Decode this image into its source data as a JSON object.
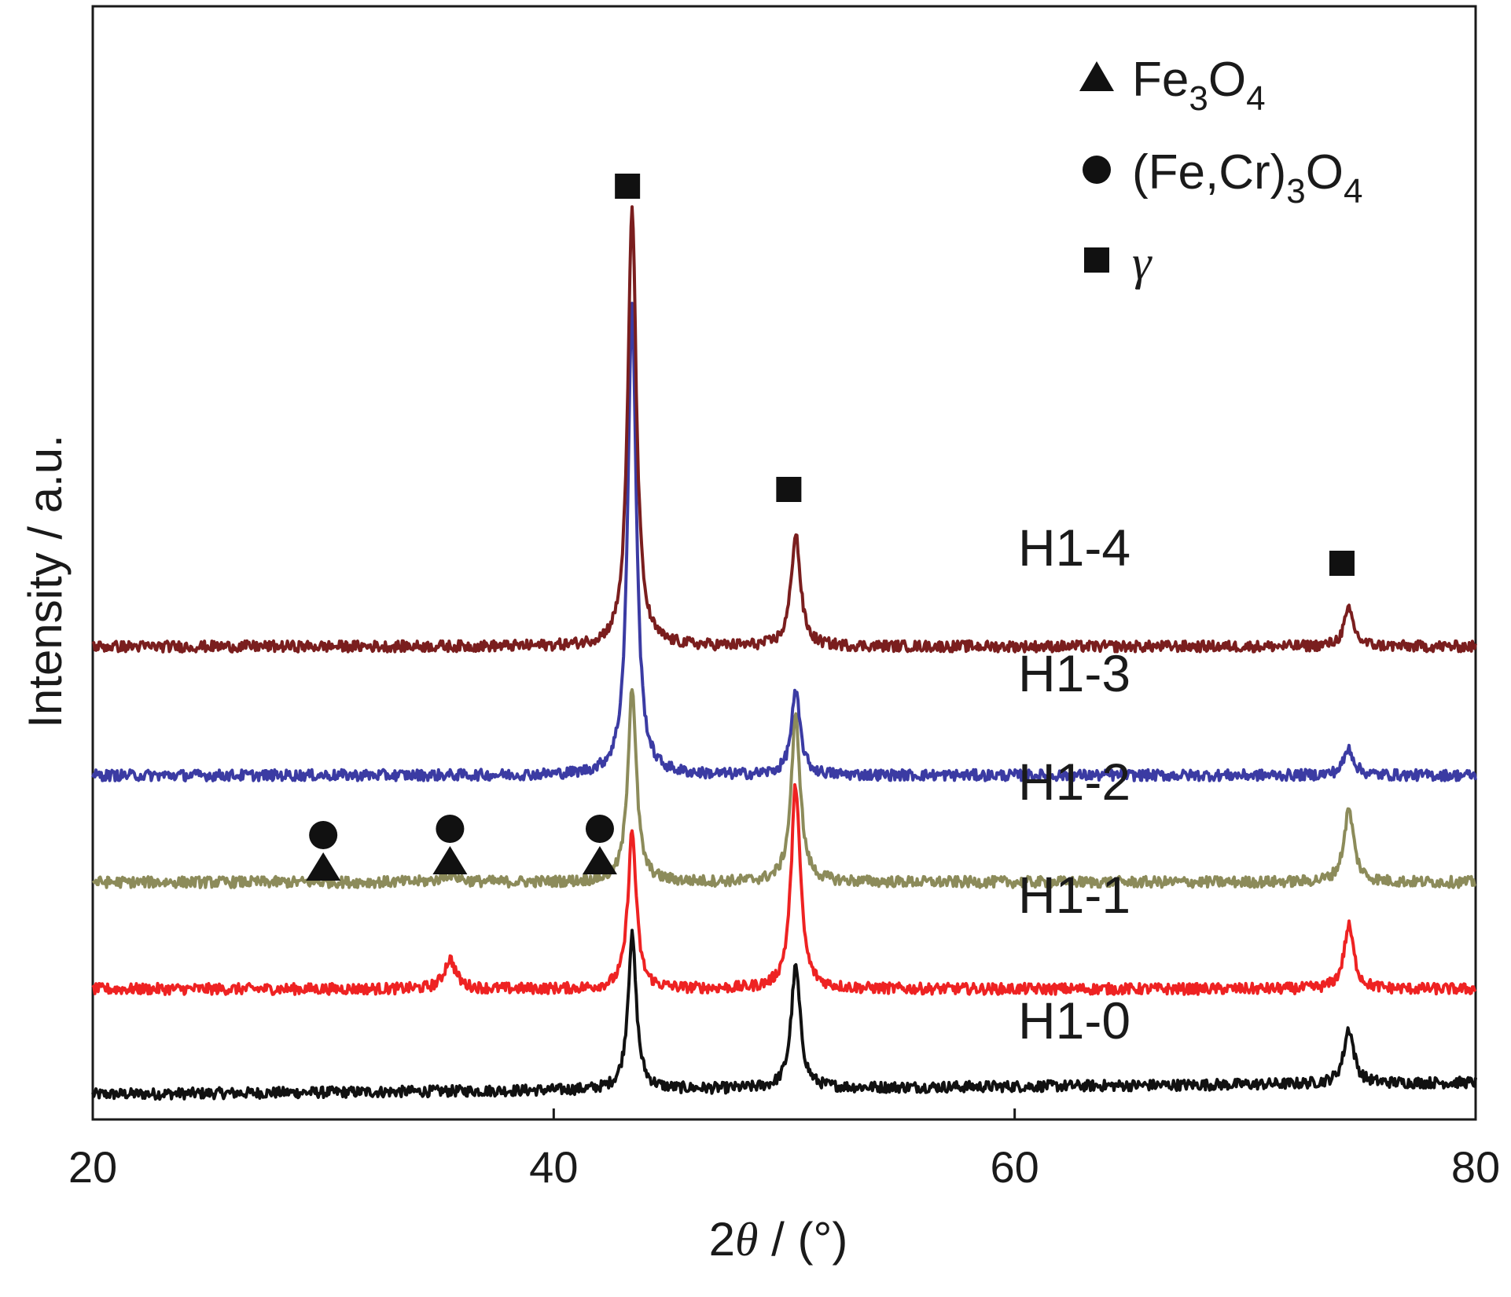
{
  "chart_data": {
    "type": "line",
    "title": "",
    "xlabel_prefix": "2",
    "xlabel_symbol": "θ",
    "xlabel_suffix": " / (°)",
    "ylabel": "Intensity / a.u.",
    "xlim": [
      20,
      80
    ],
    "xticks": [
      20,
      40,
      60,
      80
    ],
    "xtick_labels": [
      "20",
      "40",
      "60",
      "80"
    ],
    "y_units": "a.u. (offset, stacked)",
    "series": [
      {
        "name": "H1-0",
        "color": "#111111",
        "baseline": 0,
        "baseline_slope": 0.75,
        "peaks": [
          {
            "x": 43.4,
            "height": 9.8,
            "width": 0.22
          },
          {
            "x": 50.5,
            "height": 7.7,
            "width": 0.24
          },
          {
            "x": 74.5,
            "height": 3.5,
            "width": 0.26
          }
        ]
      },
      {
        "name": "H1-1",
        "color": "#ee2222",
        "baseline": 6.7,
        "baseline_slope": 0,
        "peaks": [
          {
            "x": 35.5,
            "height": 1.9,
            "width": 0.3
          },
          {
            "x": 43.4,
            "height": 10.0,
            "width": 0.22
          },
          {
            "x": 50.5,
            "height": 13.0,
            "width": 0.24
          },
          {
            "x": 74.5,
            "height": 4.0,
            "width": 0.26
          }
        ]
      },
      {
        "name": "H1-2",
        "color": "#8c8b5a",
        "baseline": 13.5,
        "baseline_slope": 0,
        "peaks": [
          {
            "x": 35.5,
            "height": 0.5,
            "width": 0.4
          },
          {
            "x": 43.4,
            "height": 12.5,
            "width": 0.22
          },
          {
            "x": 50.5,
            "height": 10.5,
            "width": 0.24
          },
          {
            "x": 74.5,
            "height": 4.6,
            "width": 0.26
          }
        ]
      },
      {
        "name": "H1-3",
        "color": "#3b3ba3",
        "baseline": 20.3,
        "baseline_slope": 0,
        "peaks": [
          {
            "x": 43.4,
            "height": 30.0,
            "width": 0.22
          },
          {
            "x": 50.5,
            "height": 5.2,
            "width": 0.24
          },
          {
            "x": 74.5,
            "height": 1.7,
            "width": 0.26
          }
        ]
      },
      {
        "name": "H1-4",
        "color": "#7a1e1e",
        "baseline": 28.5,
        "baseline_slope": 0,
        "peaks": [
          {
            "x": 43.4,
            "height": 28.0,
            "width": 0.22
          },
          {
            "x": 50.5,
            "height": 7.2,
            "width": 0.24
          },
          {
            "x": 74.5,
            "height": 2.3,
            "width": 0.26
          }
        ]
      }
    ],
    "annotations": [
      {
        "marker": "square",
        "x": 43.2,
        "y": 57.8
      },
      {
        "marker": "square",
        "x": 50.2,
        "y": 38.5
      },
      {
        "marker": "square",
        "x": 74.2,
        "y": 33.8
      },
      {
        "marker": "circle-over-triangle",
        "x": 30.0,
        "y": 14.6
      },
      {
        "marker": "circle-over-triangle",
        "x": 35.5,
        "y": 15.0
      },
      {
        "marker": "circle-over-triangle",
        "x": 42.0,
        "y": 15.0
      }
    ],
    "legend": {
      "placement": "top-right",
      "entries": [
        {
          "marker": "triangle",
          "parts": [
            {
              "t": "Fe"
            },
            {
              "t": "3",
              "sub": true
            },
            {
              "t": "O"
            },
            {
              "t": "4",
              "sub": true
            }
          ]
        },
        {
          "marker": "circle",
          "parts": [
            {
              "t": "(Fe,Cr)"
            },
            {
              "t": "3",
              "sub": true
            },
            {
              "t": "O"
            },
            {
              "t": "4",
              "sub": true
            }
          ]
        },
        {
          "marker": "square",
          "parts": [
            {
              "t": "γ",
              "italic": true
            }
          ]
        }
      ]
    }
  }
}
